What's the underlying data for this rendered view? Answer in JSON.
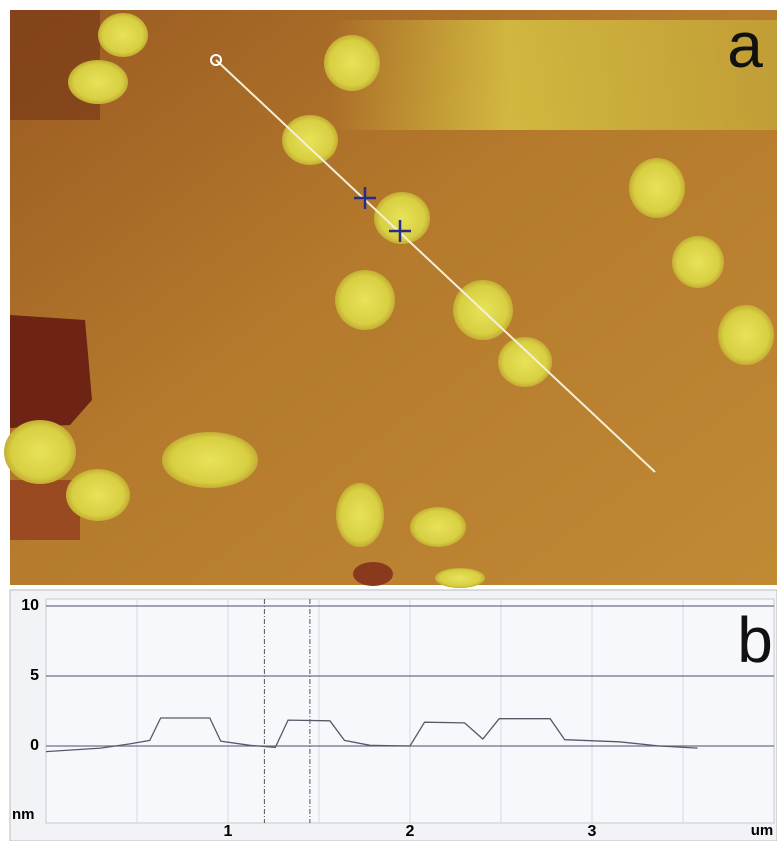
{
  "image": {
    "panel_label": "a"
  },
  "chart_data": {
    "type": "line",
    "panel_label": "b",
    "x_label": "um",
    "y_label": "nm",
    "x": [
      0,
      0.3,
      0.46,
      0.57,
      0.63,
      0.9,
      0.96,
      1.12,
      1.26,
      1.33,
      1.56,
      1.64,
      1.78,
      2.0,
      2.08,
      2.3,
      2.4,
      2.49,
      2.77,
      2.85,
      3.15,
      3.37,
      3.58
    ],
    "values": [
      -0.4,
      -0.15,
      0.15,
      0.4,
      2.0,
      2.0,
      0.35,
      0.05,
      -0.1,
      1.85,
      1.8,
      0.4,
      0.05,
      0,
      1.7,
      1.65,
      0.5,
      1.95,
      1.95,
      0.45,
      0.3,
      0,
      -0.15
    ],
    "color": "#555b66",
    "xlim": [
      0,
      4
    ],
    "ylim": [
      -5.5,
      10.5
    ],
    "xticks": [
      1,
      2,
      3
    ],
    "xminor": [
      0.5,
      1.5,
      2.5,
      3.5
    ],
    "yticks": [
      0,
      5,
      10
    ],
    "cursors": [
      1.2,
      1.45
    ]
  }
}
